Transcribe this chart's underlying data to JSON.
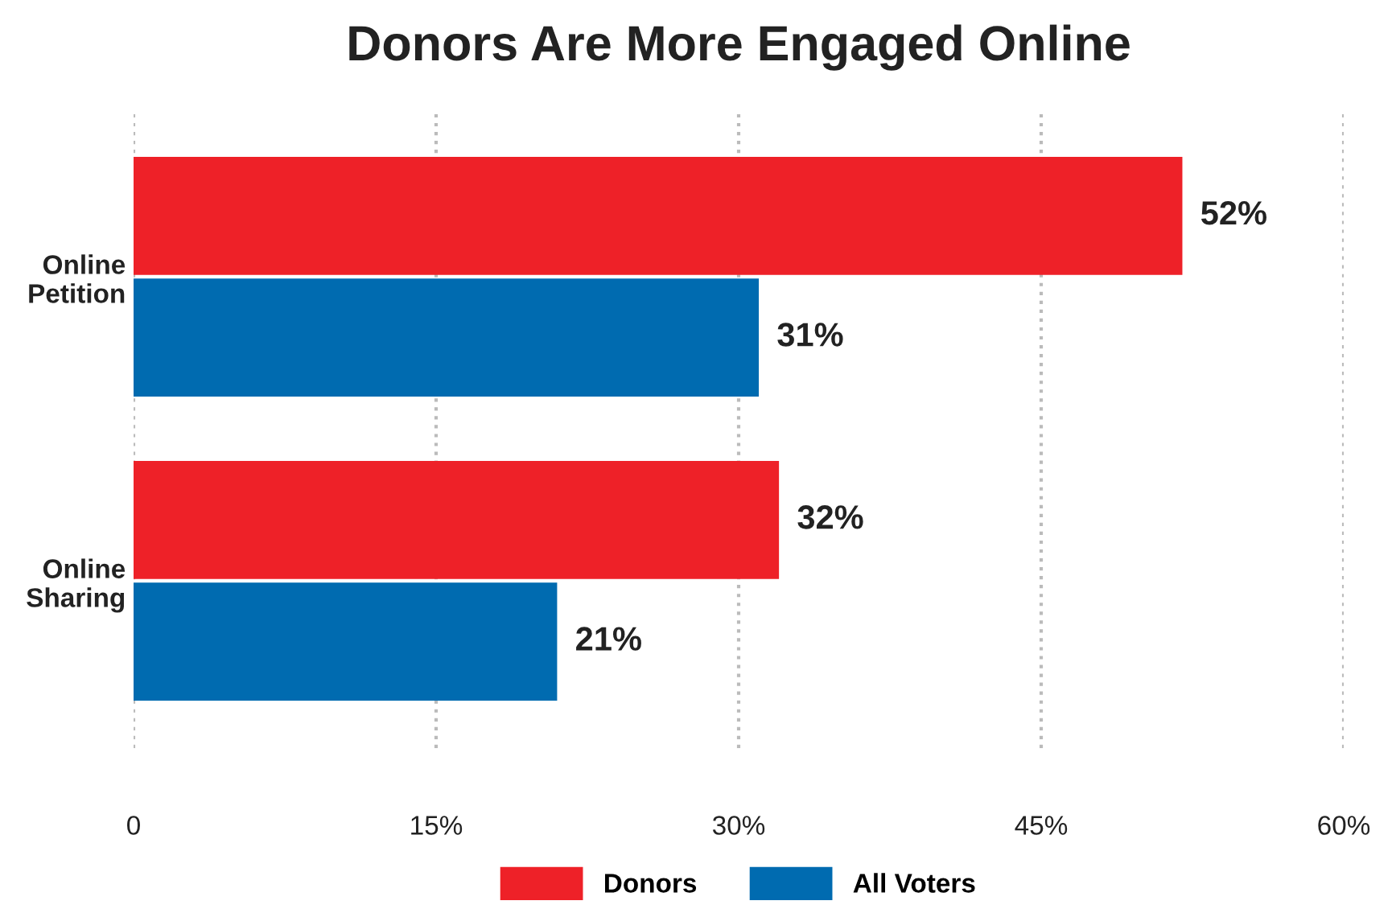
{
  "chart_data": {
    "type": "bar",
    "orientation": "horizontal",
    "title": "Donors Are More Engaged Online",
    "categories": [
      "Online\nPetition",
      "Online\nSharing"
    ],
    "series": [
      {
        "name": "Donors",
        "color": "#ee2128",
        "values": [
          52,
          32
        ],
        "value_labels": [
          "52%",
          "32%"
        ]
      },
      {
        "name": "All Voters",
        "color": "#006bb0",
        "values": [
          31,
          21
        ],
        "value_labels": [
          "31%",
          "21%"
        ]
      }
    ],
    "xlim": [
      0,
      60
    ],
    "xticks": [
      0,
      {
        "value": 15,
        "label": "15%"
      },
      {
        "value": 30,
        "label": "30%"
      },
      {
        "value": 45,
        "label": "45%"
      },
      {
        "value": 60,
        "label": "60%"
      }
    ],
    "grid": "x",
    "legend": "bottom"
  }
}
